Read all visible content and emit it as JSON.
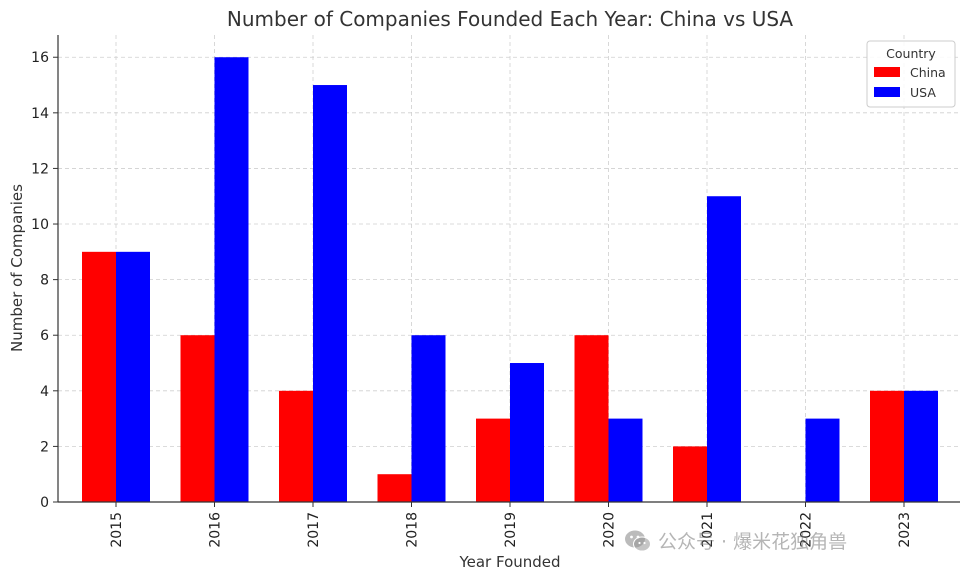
{
  "chart_data": {
    "type": "bar",
    "title": "Number of Companies Founded Each Year: China vs USA",
    "xlabel": "Year Founded",
    "ylabel": "Number of Companies",
    "categories": [
      "2015",
      "2016",
      "2017",
      "2018",
      "2019",
      "2020",
      "2021",
      "2022",
      "2023"
    ],
    "series": [
      {
        "name": "China",
        "color": "#ff0000",
        "values": [
          9,
          6,
          4,
          1,
          3,
          6,
          2,
          0,
          4
        ]
      },
      {
        "name": "USA",
        "color": "#0000ff",
        "values": [
          9,
          16,
          15,
          6,
          5,
          3,
          11,
          3,
          4
        ]
      }
    ],
    "ylim": [
      0,
      16.8
    ],
    "yticks": [
      0,
      2,
      4,
      6,
      8,
      10,
      12,
      14,
      16
    ],
    "grid": true,
    "legend": {
      "title": "Country",
      "placement": "top-right"
    }
  },
  "watermark": {
    "icon": "wechat-icon",
    "text": "公众号 · 爆米花独角兽"
  }
}
